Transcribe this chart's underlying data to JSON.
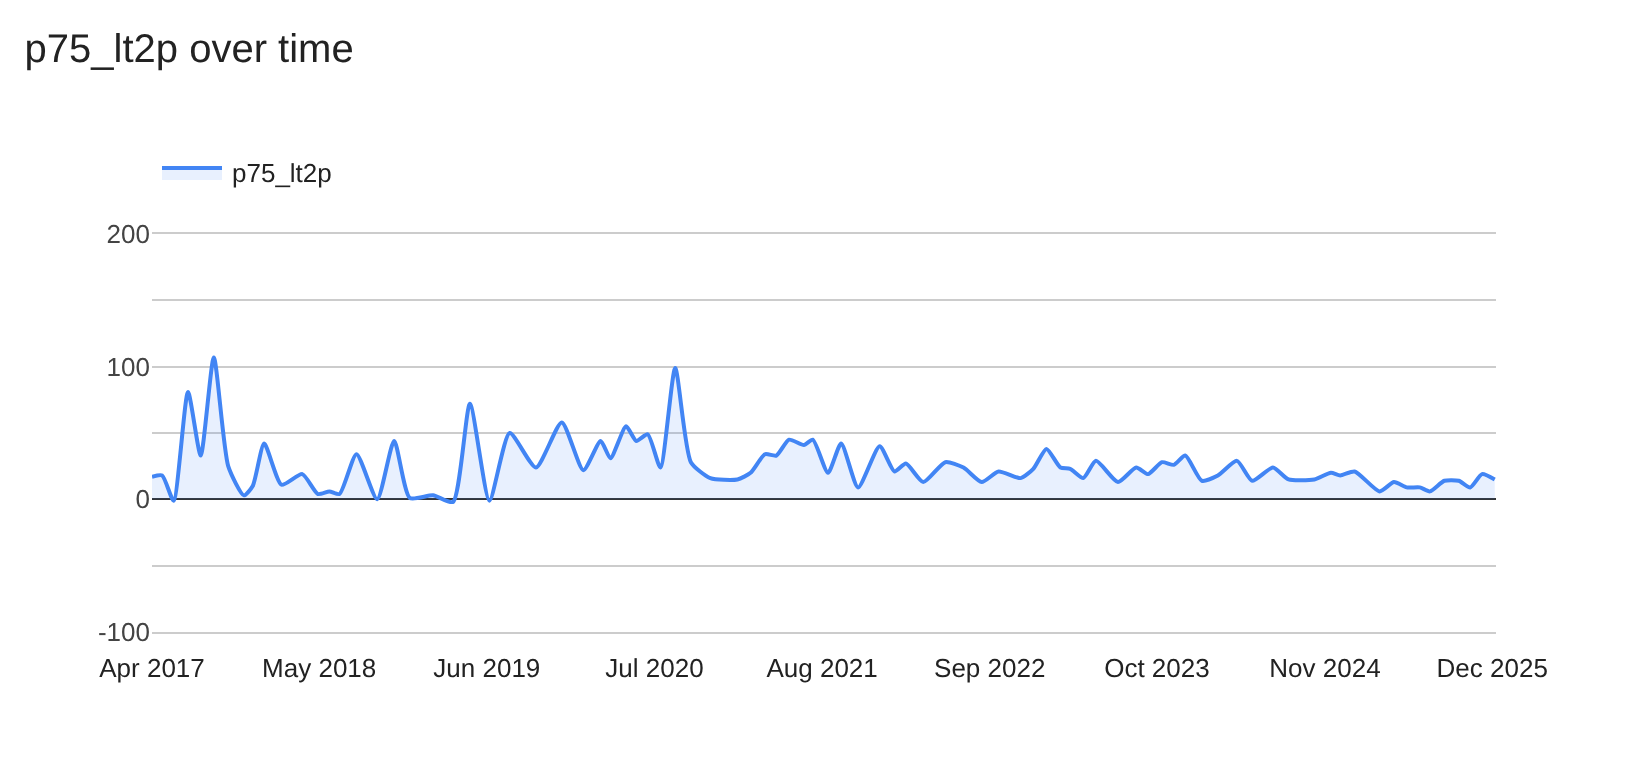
{
  "chart_data": {
    "type": "area",
    "title": "p75_lt2p over time",
    "x": [
      "2017-04-01",
      "2017-04-25",
      "2017-05-22",
      "2017-06-25",
      "2017-07-25",
      "2017-08-25",
      "2017-09-28",
      "2017-11-04",
      "2017-11-25",
      "2017-12-22",
      "2018-02-01",
      "2018-03-22",
      "2018-04-28",
      "2018-05-25",
      "2018-06-18",
      "2018-07-28",
      "2018-09-15",
      "2018-10-25",
      "2018-12-01",
      "2019-01-25",
      "2019-03-13",
      "2019-04-22",
      "2019-06-07",
      "2019-07-25",
      "2019-09-25",
      "2019-11-25",
      "2020-01-15",
      "2020-02-25",
      "2020-03-19",
      "2020-04-25",
      "2020-05-19",
      "2020-06-15",
      "2020-07-15",
      "2020-08-19",
      "2020-09-25",
      "2020-11-10",
      "2021-01-13",
      "2021-02-13",
      "2021-03-19",
      "2021-04-15",
      "2021-05-15",
      "2021-06-19",
      "2021-07-10",
      "2021-08-15",
      "2021-09-15",
      "2021-10-25",
      "2021-12-15",
      "2022-01-19",
      "2022-02-15",
      "2022-03-28",
      "2022-05-19",
      "2022-07-01",
      "2022-08-13",
      "2022-09-22",
      "2022-11-13",
      "2022-12-13",
      "2023-01-13",
      "2023-02-15",
      "2023-03-10",
      "2023-04-10",
      "2023-05-10",
      "2023-07-01",
      "2023-08-13",
      "2023-09-10",
      "2023-10-13",
      "2023-11-10",
      "2023-12-07",
      "2024-01-15",
      "2024-02-22",
      "2024-04-07",
      "2024-05-13",
      "2024-07-01",
      "2024-08-07",
      "2024-10-07",
      "2024-11-15",
      "2024-12-07",
      "2025-01-10",
      "2025-03-10",
      "2025-04-13",
      "2025-05-13",
      "2025-06-13",
      "2025-07-07",
      "2025-08-10",
      "2025-09-13",
      "2025-10-10",
      "2025-11-07",
      "2025-12-07"
    ],
    "series": [
      {
        "name": "p75_lt2p",
        "color": "#4285f4",
        "values": [
          17,
          18,
          -1,
          81,
          33,
          107,
          25,
          3,
          10,
          42,
          11,
          19,
          4,
          6,
          4,
          34,
          0,
          44,
          1,
          3,
          -2,
          72,
          -1,
          50,
          24,
          58,
          22,
          44,
          31,
          55,
          44,
          49,
          24,
          99,
          28,
          16,
          15,
          20,
          34,
          33,
          45,
          41,
          45,
          20,
          42,
          9,
          40,
          21,
          27,
          13,
          28,
          24,
          13,
          21,
          16,
          23,
          38,
          24,
          23,
          16,
          29,
          13,
          24,
          19,
          28,
          26,
          33,
          14,
          18,
          29,
          14,
          24,
          15,
          15,
          20,
          18,
          21,
          6,
          13,
          9,
          9,
          6,
          14,
          14,
          9,
          19,
          15
        ]
      }
    ],
    "xlim": [
      "2017-04-01",
      "2025-12-10"
    ],
    "xticks": [
      {
        "value": "2017-04-01",
        "label": "Apr 2017"
      },
      {
        "value": "2018-05-01",
        "label": "May 2018"
      },
      {
        "value": "2019-06-01",
        "label": "Jun 2019"
      },
      {
        "value": "2020-07-01",
        "label": "Jul 2020"
      },
      {
        "value": "2021-08-01",
        "label": "Aug 2021"
      },
      {
        "value": "2022-09-01",
        "label": "Sep 2022"
      },
      {
        "value": "2023-10-01",
        "label": "Oct 2023"
      },
      {
        "value": "2024-11-01",
        "label": "Nov 2024"
      },
      {
        "value": "2025-12-01",
        "label": "Dec 2025"
      }
    ],
    "ylim": [
      -100,
      200
    ],
    "yticks": [
      -100,
      {
        "value": -50,
        "label": null
      },
      0,
      {
        "value": 50,
        "label": null
      },
      100,
      {
        "value": 150,
        "label": null
      },
      200
    ],
    "grid": "y",
    "legend": "top left"
  }
}
